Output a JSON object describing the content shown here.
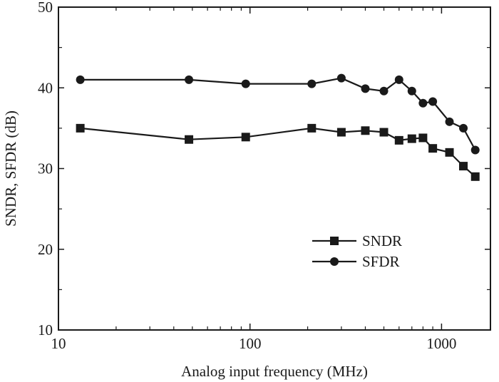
{
  "chart_data": {
    "type": "line",
    "xlabel": "Analog input frequency (MHz)",
    "ylabel": "SNDR, SFDR (dB)",
    "x_scale": "log",
    "xlim": [
      10,
      1800
    ],
    "ylim": [
      10,
      50
    ],
    "x_ticks": [
      10,
      100,
      1000
    ],
    "x_tick_labels": [
      "10",
      "100",
      "1000"
    ],
    "y_ticks": [
      10,
      20,
      30,
      40,
      50
    ],
    "y_tick_labels": [
      "10",
      "20",
      "30",
      "40",
      "50"
    ],
    "grid": false,
    "legend_position": "lower-right",
    "series": [
      {
        "name": "SNDR",
        "marker": "square",
        "color": "#1a1a1a",
        "x": [
          13,
          48,
          95,
          210,
          300,
          400,
          500,
          600,
          700,
          800,
          900,
          1100,
          1300,
          1500
        ],
        "values": [
          35.0,
          33.6,
          33.9,
          35.0,
          34.5,
          34.7,
          34.5,
          33.5,
          33.7,
          33.8,
          32.5,
          32.0,
          30.3,
          29.0
        ]
      },
      {
        "name": "SFDR",
        "marker": "circle",
        "color": "#1a1a1a",
        "x": [
          13,
          48,
          95,
          210,
          300,
          400,
          500,
          600,
          700,
          800,
          900,
          1100,
          1300,
          1500
        ],
        "values": [
          41.0,
          41.0,
          40.5,
          40.5,
          41.2,
          39.9,
          39.6,
          41.0,
          39.6,
          38.1,
          38.3,
          35.8,
          35.0,
          32.3
        ]
      }
    ]
  }
}
